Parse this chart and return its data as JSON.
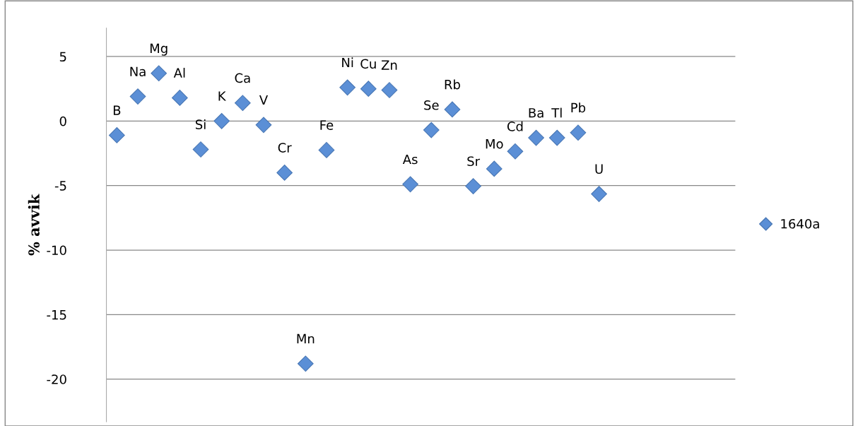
{
  "chart_data": {
    "type": "scatter",
    "ylabel": "% avvik",
    "categories": [
      null,
      null,
      null,
      null,
      null,
      null,
      null,
      null,
      null,
      null,
      null,
      null,
      null,
      null,
      null,
      null,
      null,
      null,
      null,
      null,
      null,
      null,
      null,
      null,
      null,
      null,
      null,
      null,
      null,
      null
    ],
    "series": [
      {
        "name": "1640a",
        "color": "#5b8fd6",
        "values": [
          -1.1,
          1.9,
          3.7,
          1.8,
          -2.2,
          0.0,
          1.4,
          -0.3,
          -4.0,
          -18.8,
          -2.25,
          2.6,
          2.5,
          2.4,
          -4.9,
          -0.7,
          0.9,
          -5.05,
          -3.7,
          -2.35,
          -1.3,
          -1.3,
          -0.9,
          -5.65,
          null,
          null,
          null,
          null,
          null,
          null
        ],
        "value_labels": [
          "B",
          "Na",
          "Mg",
          "Al",
          "Si",
          "K",
          "Ca",
          "V",
          "Cr",
          "Mn",
          "Fe",
          "Ni",
          "Cu",
          "Zn",
          "As",
          "Se",
          "Rb",
          "Sr",
          "Mo",
          "Cd",
          "Ba",
          "Tl",
          "Pb",
          "U",
          null,
          null,
          null,
          null,
          null,
          null
        ]
      }
    ],
    "ylim": [
      -23.3,
      7.2
    ],
    "yticks": [
      -20,
      -15,
      -10,
      -5,
      0,
      5
    ],
    "grid": "y",
    "legend": "right",
    "marker": "diamond"
  }
}
